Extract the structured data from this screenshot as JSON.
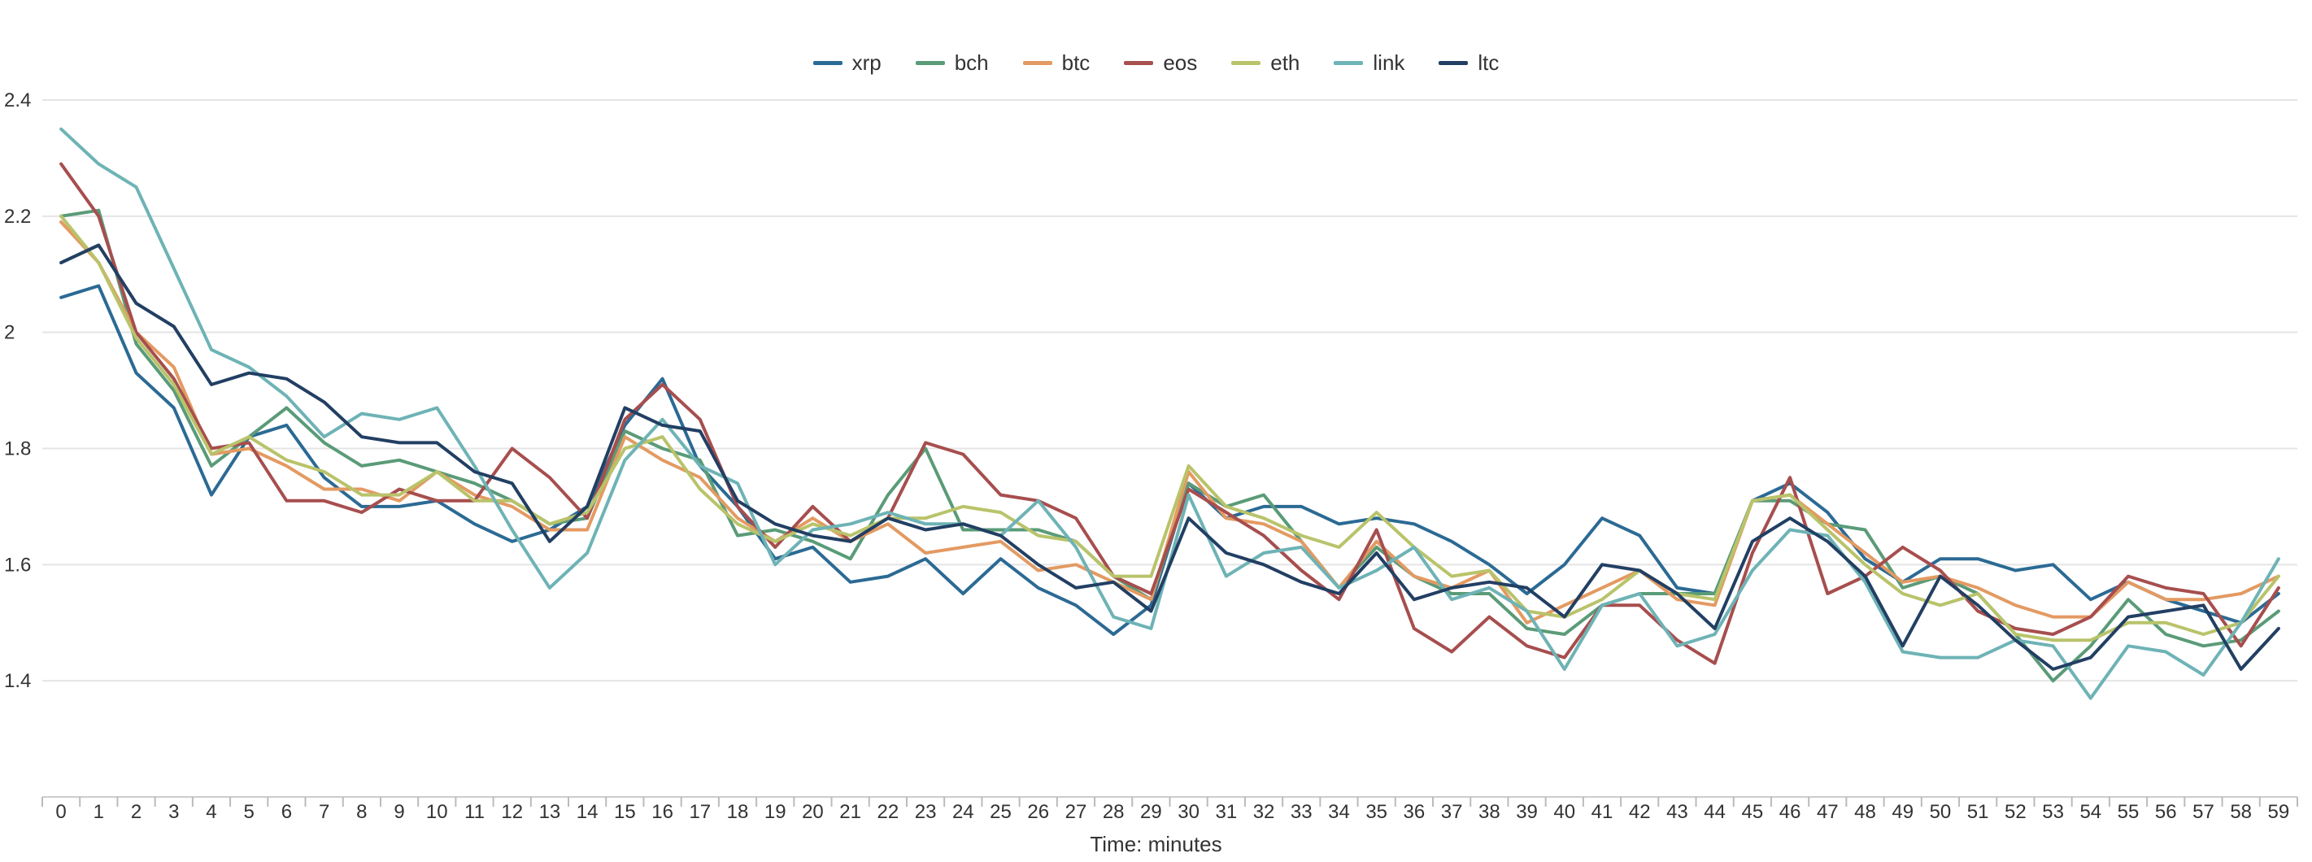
{
  "chart_data": {
    "type": "line",
    "xlabel": "Time: minutes",
    "ylabel": "",
    "ylim": [
      1.2,
      2.4
    ],
    "yticks": [
      1.4,
      1.6,
      1.8,
      2,
      2.2,
      2.4
    ],
    "x": [
      0,
      1,
      2,
      3,
      4,
      5,
      6,
      7,
      8,
      9,
      10,
      11,
      12,
      13,
      14,
      15,
      16,
      17,
      18,
      19,
      20,
      21,
      22,
      23,
      24,
      25,
      26,
      27,
      28,
      29,
      30,
      31,
      32,
      33,
      34,
      35,
      36,
      37,
      38,
      39,
      40,
      41,
      42,
      43,
      44,
      45,
      46,
      47,
      48,
      49,
      50,
      51,
      52,
      53,
      54,
      55,
      56,
      57,
      58,
      59
    ],
    "legend_position": "top-center",
    "grid": true,
    "series": [
      {
        "name": "xrp",
        "color": "#2b6a94",
        "values": [
          2.06,
          2.08,
          1.93,
          1.87,
          1.72,
          1.82,
          1.84,
          1.75,
          1.7,
          1.7,
          1.71,
          1.67,
          1.64,
          1.66,
          1.7,
          1.84,
          1.92,
          1.77,
          1.7,
          1.61,
          1.63,
          1.57,
          1.58,
          1.61,
          1.55,
          1.61,
          1.56,
          1.53,
          1.48,
          1.53,
          1.74,
          1.68,
          1.7,
          1.7,
          1.67,
          1.68,
          1.67,
          1.64,
          1.6,
          1.55,
          1.6,
          1.68,
          1.65,
          1.56,
          1.55,
          1.71,
          1.74,
          1.69,
          1.61,
          1.57,
          1.61,
          1.61,
          1.59,
          1.6,
          1.54,
          1.57,
          1.54,
          1.52,
          1.5,
          1.55
        ]
      },
      {
        "name": "bch",
        "color": "#5a9b78",
        "values": [
          2.2,
          2.21,
          1.98,
          1.9,
          1.77,
          1.82,
          1.87,
          1.81,
          1.77,
          1.78,
          1.76,
          1.74,
          1.71,
          1.67,
          1.68,
          1.83,
          1.8,
          1.78,
          1.65,
          1.66,
          1.64,
          1.61,
          1.72,
          1.8,
          1.66,
          1.66,
          1.66,
          1.64,
          1.58,
          1.54,
          1.74,
          1.7,
          1.72,
          1.64,
          1.56,
          1.63,
          1.58,
          1.55,
          1.55,
          1.49,
          1.48,
          1.53,
          1.55,
          1.55,
          1.55,
          1.71,
          1.71,
          1.67,
          1.66,
          1.56,
          1.58,
          1.55,
          1.48,
          1.4,
          1.46,
          1.54,
          1.48,
          1.46,
          1.47,
          1.52
        ]
      },
      {
        "name": "btc",
        "color": "#e39a62",
        "values": [
          2.19,
          2.12,
          2.0,
          1.94,
          1.79,
          1.8,
          1.77,
          1.73,
          1.73,
          1.71,
          1.76,
          1.72,
          1.7,
          1.66,
          1.66,
          1.82,
          1.78,
          1.75,
          1.68,
          1.64,
          1.68,
          1.64,
          1.67,
          1.62,
          1.63,
          1.64,
          1.59,
          1.6,
          1.57,
          1.54,
          1.76,
          1.68,
          1.67,
          1.64,
          1.56,
          1.64,
          1.58,
          1.56,
          1.59,
          1.5,
          1.53,
          1.56,
          1.59,
          1.54,
          1.53,
          1.71,
          1.72,
          1.67,
          1.62,
          1.57,
          1.58,
          1.56,
          1.53,
          1.51,
          1.51,
          1.57,
          1.54,
          1.54,
          1.55,
          1.58
        ]
      },
      {
        "name": "eos",
        "color": "#a74e4e",
        "values": [
          2.29,
          2.2,
          2.0,
          1.92,
          1.8,
          1.81,
          1.71,
          1.71,
          1.69,
          1.73,
          1.71,
          1.71,
          1.8,
          1.75,
          1.68,
          1.85,
          1.91,
          1.85,
          1.7,
          1.63,
          1.7,
          1.64,
          1.68,
          1.81,
          1.79,
          1.72,
          1.71,
          1.68,
          1.58,
          1.55,
          1.73,
          1.69,
          1.65,
          1.59,
          1.54,
          1.66,
          1.49,
          1.45,
          1.51,
          1.46,
          1.44,
          1.53,
          1.53,
          1.47,
          1.43,
          1.62,
          1.75,
          1.55,
          1.58,
          1.63,
          1.59,
          1.52,
          1.49,
          1.48,
          1.51,
          1.58,
          1.56,
          1.55,
          1.46,
          1.56
        ]
      },
      {
        "name": "eth",
        "color": "#b9c36a",
        "values": [
          2.2,
          2.12,
          1.99,
          1.91,
          1.79,
          1.82,
          1.78,
          1.76,
          1.72,
          1.72,
          1.76,
          1.71,
          1.71,
          1.67,
          1.69,
          1.8,
          1.82,
          1.73,
          1.67,
          1.64,
          1.67,
          1.65,
          1.68,
          1.68,
          1.7,
          1.69,
          1.65,
          1.64,
          1.58,
          1.58,
          1.77,
          1.7,
          1.68,
          1.65,
          1.63,
          1.69,
          1.63,
          1.58,
          1.59,
          1.52,
          1.51,
          1.54,
          1.59,
          1.55,
          1.54,
          1.71,
          1.72,
          1.66,
          1.6,
          1.55,
          1.53,
          1.55,
          1.48,
          1.47,
          1.47,
          1.5,
          1.5,
          1.48,
          1.5,
          1.58
        ]
      },
      {
        "name": "link",
        "color": "#6eb3b6",
        "values": [
          2.35,
          2.29,
          2.25,
          2.11,
          1.97,
          1.94,
          1.89,
          1.82,
          1.86,
          1.85,
          1.87,
          1.77,
          1.66,
          1.56,
          1.62,
          1.78,
          1.85,
          1.77,
          1.74,
          1.6,
          1.66,
          1.67,
          1.69,
          1.67,
          1.67,
          1.65,
          1.71,
          1.63,
          1.51,
          1.49,
          1.72,
          1.58,
          1.62,
          1.63,
          1.56,
          1.59,
          1.63,
          1.54,
          1.56,
          1.52,
          1.42,
          1.53,
          1.55,
          1.46,
          1.48,
          1.59,
          1.66,
          1.65,
          1.57,
          1.45,
          1.44,
          1.44,
          1.47,
          1.46,
          1.37,
          1.46,
          1.45,
          1.41,
          1.5,
          1.61
        ]
      },
      {
        "name": "ltc",
        "color": "#223f63",
        "values": [
          2.12,
          2.15,
          2.05,
          2.01,
          1.91,
          1.93,
          1.92,
          1.88,
          1.82,
          1.81,
          1.81,
          1.76,
          1.74,
          1.64,
          1.7,
          1.87,
          1.84,
          1.83,
          1.71,
          1.67,
          1.65,
          1.64,
          1.68,
          1.66,
          1.67,
          1.65,
          1.6,
          1.56,
          1.57,
          1.52,
          1.68,
          1.62,
          1.6,
          1.57,
          1.55,
          1.62,
          1.54,
          1.56,
          1.57,
          1.56,
          1.51,
          1.6,
          1.59,
          1.55,
          1.49,
          1.64,
          1.68,
          1.64,
          1.58,
          1.46,
          1.58,
          1.53,
          1.47,
          1.42,
          1.44,
          1.51,
          1.52,
          1.53,
          1.42,
          1.49
        ]
      }
    ]
  }
}
